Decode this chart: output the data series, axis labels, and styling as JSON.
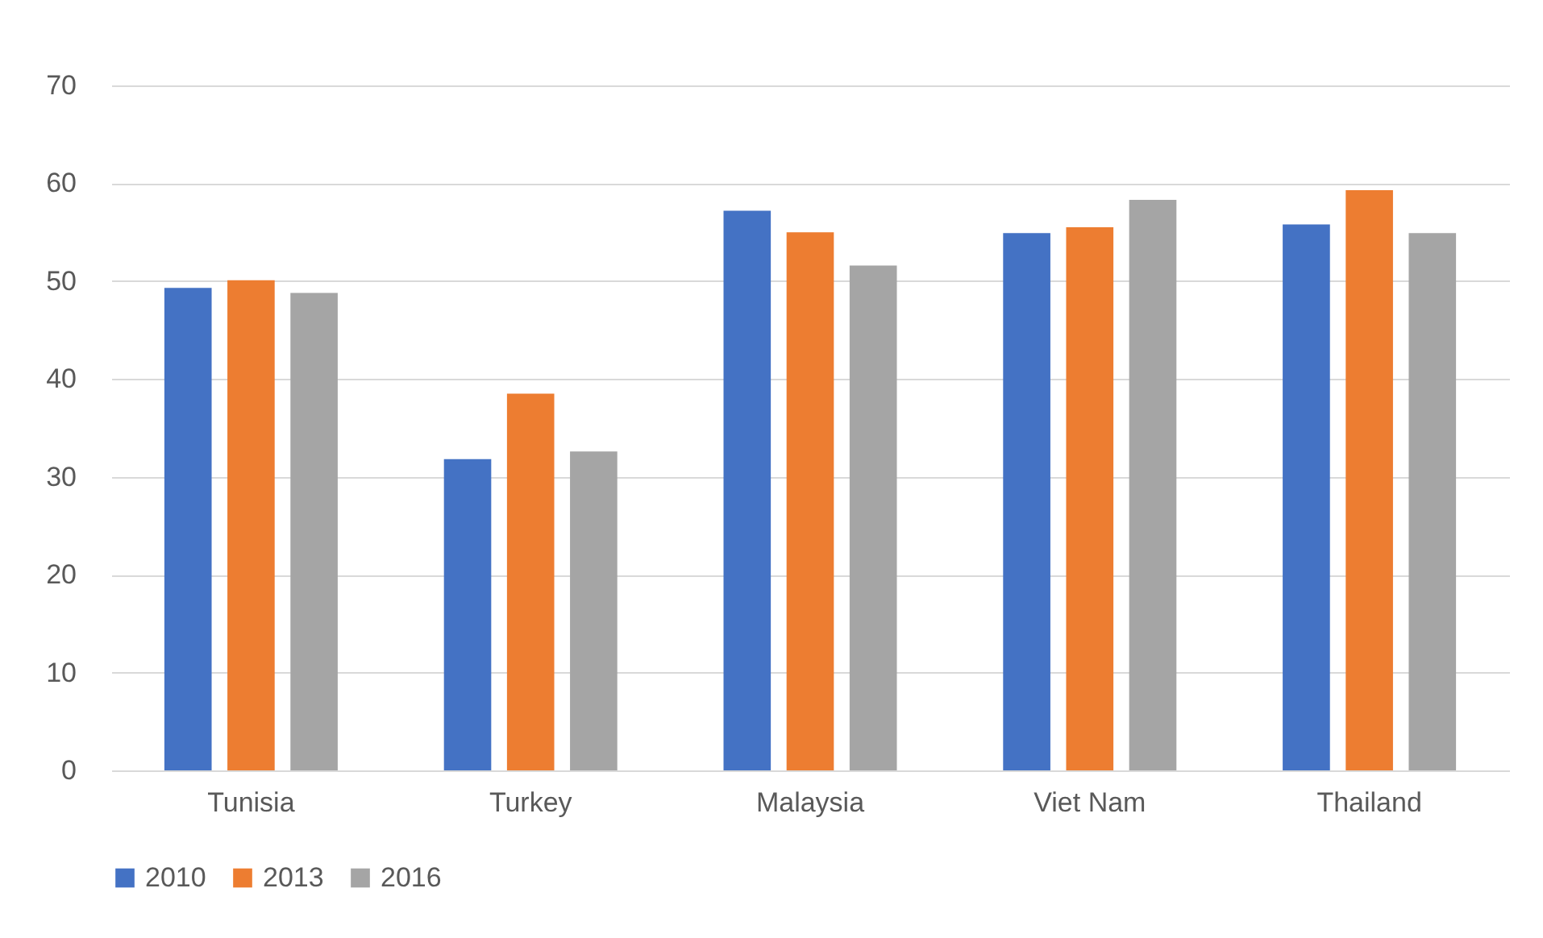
{
  "chart_data": {
    "type": "bar",
    "categories": [
      "Tunisia",
      "Turkey",
      "Malaysia",
      "Viet Nam",
      "Thailand"
    ],
    "series": [
      {
        "name": "2010",
        "color": "#4472c4",
        "values": [
          49.3,
          31.8,
          57.2,
          54.9,
          55.8
        ]
      },
      {
        "name": "2013",
        "color": "#ed7d31",
        "values": [
          50.1,
          38.5,
          55.0,
          55.5,
          59.3
        ]
      },
      {
        "name": "2016",
        "color": "#a5a5a5",
        "values": [
          48.8,
          32.6,
          51.6,
          58.3,
          54.9
        ]
      }
    ],
    "ylim": [
      0,
      70
    ],
    "yticks": [
      0,
      10,
      20,
      30,
      40,
      50,
      60,
      70
    ],
    "grid": "y",
    "legend": "bottom"
  }
}
